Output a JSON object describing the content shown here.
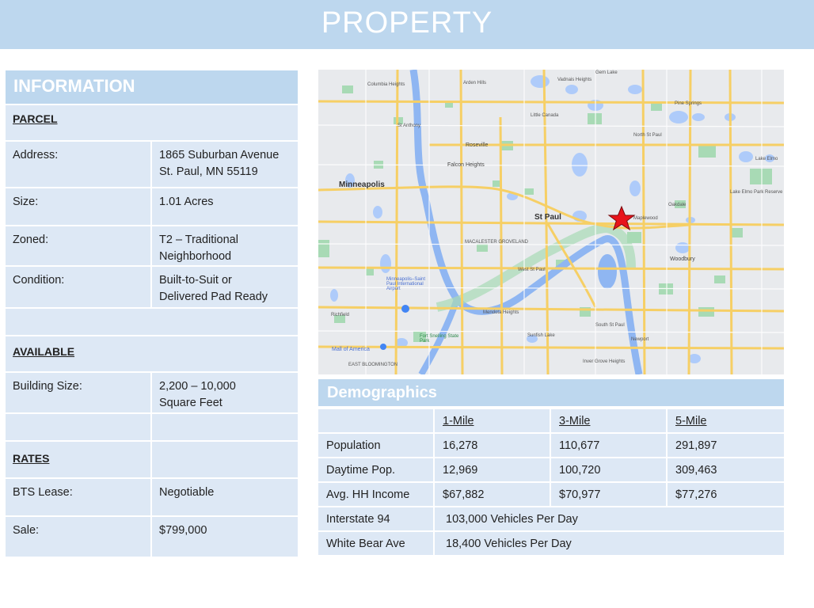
{
  "banner": {
    "title": "PROPERTY"
  },
  "info": {
    "heading": "INFORMATION",
    "parcel_label": "PARCEL",
    "address_label": "Address:",
    "address_line1": "1865 Suburban Avenue",
    "address_line2": "St. Paul, MN 55119",
    "size_label": "Size:",
    "size_value": "1.01 Acres",
    "zoned_label": "Zoned:",
    "zoned_line1": "T2 – Traditional",
    "zoned_line2": "Neighborhood",
    "condition_label": "Condition:",
    "condition_line1": "Built-to-Suit or",
    "condition_line2": "Delivered Pad Ready",
    "available_label": "AVAILABLE",
    "building_size_label": "Building Size:",
    "building_size_line1": "2,200 – 10,000",
    "building_size_line2": "Square Feet",
    "rates_label": "RATES",
    "bts_label": "BTS Lease:",
    "bts_value": "Negotiable",
    "sale_label": "Sale:",
    "sale_value": "$799,000"
  },
  "map": {
    "labels": {
      "minneapolis": "Minneapolis",
      "st_paul": "St Paul",
      "roseville": "Roseville",
      "falcon_heights": "Falcon Heights",
      "columbia_heights": "Columbia Heights",
      "arden_hills": "Arden Hills",
      "vadnais_heights": "Vadnais Heights",
      "gem_lake": "Gem Lake",
      "little_canada": "Little Canada",
      "pine_springs": "Pine Springs",
      "north_st_paul": "North St Paul",
      "lake_elmo": "Lake Elmo",
      "lake_elmo_park": "Lake Elmo Park Reserve",
      "oakdale": "Oakdale",
      "maplewood": "Maplewood",
      "woodbury": "Woodbury",
      "st_anthony": "St Anthony",
      "west_st_paul": "West St Paul",
      "mendota_heights": "Mendota Heights",
      "sunfish_lake": "Sunfish Lake",
      "south_st_paul": "South St Paul",
      "newport": "Newport",
      "inver_grove": "Inver Grove Heights",
      "richfield": "Richfield",
      "mall_of_america": "Mall of America",
      "airport": "Minneapolis–Saint Paul International Airport",
      "fort_snelling": "Fort Snelling State Park",
      "east_bloomington": "EAST BLOOMINGTON",
      "macalester": "MACALESTER GROVELAND"
    }
  },
  "demographics": {
    "heading": "Demographics",
    "columns": [
      "1-Mile",
      "3-Mile",
      "5-Mile"
    ],
    "rows": [
      {
        "label": "Population",
        "values": [
          "16,278",
          "110,677",
          "291,897"
        ]
      },
      {
        "label": "Daytime Pop.",
        "values": [
          "12,969",
          "100,720",
          "309,463"
        ]
      },
      {
        "label": "Avg. HH Income",
        "values": [
          "$67,882",
          "$70,977",
          "$77,276"
        ]
      }
    ],
    "traffic": [
      {
        "label": "Interstate 94",
        "value": "103,000 Vehicles Per Day"
      },
      {
        "label": "White Bear Ave",
        "value": "18,400 Vehicles Per Day"
      }
    ]
  },
  "colors": {
    "banner": "#bdd7ee",
    "cell": "#dde8f5",
    "marker": "#e8141b",
    "water": "#aecbfa",
    "park": "#a8dab5",
    "highway": "#f6cf65"
  }
}
